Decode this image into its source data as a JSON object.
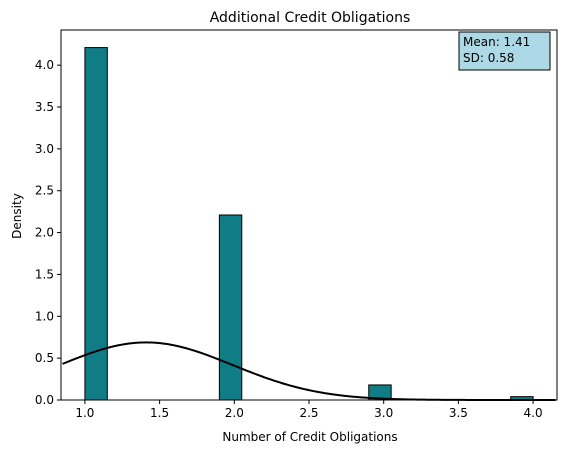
{
  "chart_data": {
    "type": "bar",
    "title": "Additional Credit Obligations",
    "xlabel": "Number of Credit Obligations",
    "ylabel": "Density",
    "xlim": [
      0.84,
      4.16
    ],
    "ylim": [
      0,
      4.42
    ],
    "x_ticks": [
      "1.0",
      "1.5",
      "2.0",
      "2.5",
      "3.0",
      "3.5",
      "4.0"
    ],
    "y_ticks": [
      "0.0",
      "0.5",
      "1.0",
      "1.5",
      "2.0",
      "2.5",
      "3.0",
      "3.5",
      "4.0"
    ],
    "bars": [
      {
        "x0": 1.0,
        "x1": 1.15,
        "height": 4.21
      },
      {
        "x0": 1.9,
        "x1": 2.05,
        "height": 2.21
      },
      {
        "x0": 2.9,
        "x1": 3.05,
        "height": 0.18
      },
      {
        "x0": 3.85,
        "x1": 4.0,
        "height": 0.04
      }
    ],
    "bar_color": "#0f7c86",
    "curve": {
      "type": "normal-pdf",
      "mean": 1.41,
      "sd": 0.58,
      "x_range": [
        0.85,
        4.15
      ],
      "color": "#000000"
    },
    "grid": false,
    "stats_box": {
      "lines": [
        "Mean: 1.41",
        "SD: 0.58"
      ],
      "placement": "top-right",
      "background": "#add8e6"
    }
  }
}
